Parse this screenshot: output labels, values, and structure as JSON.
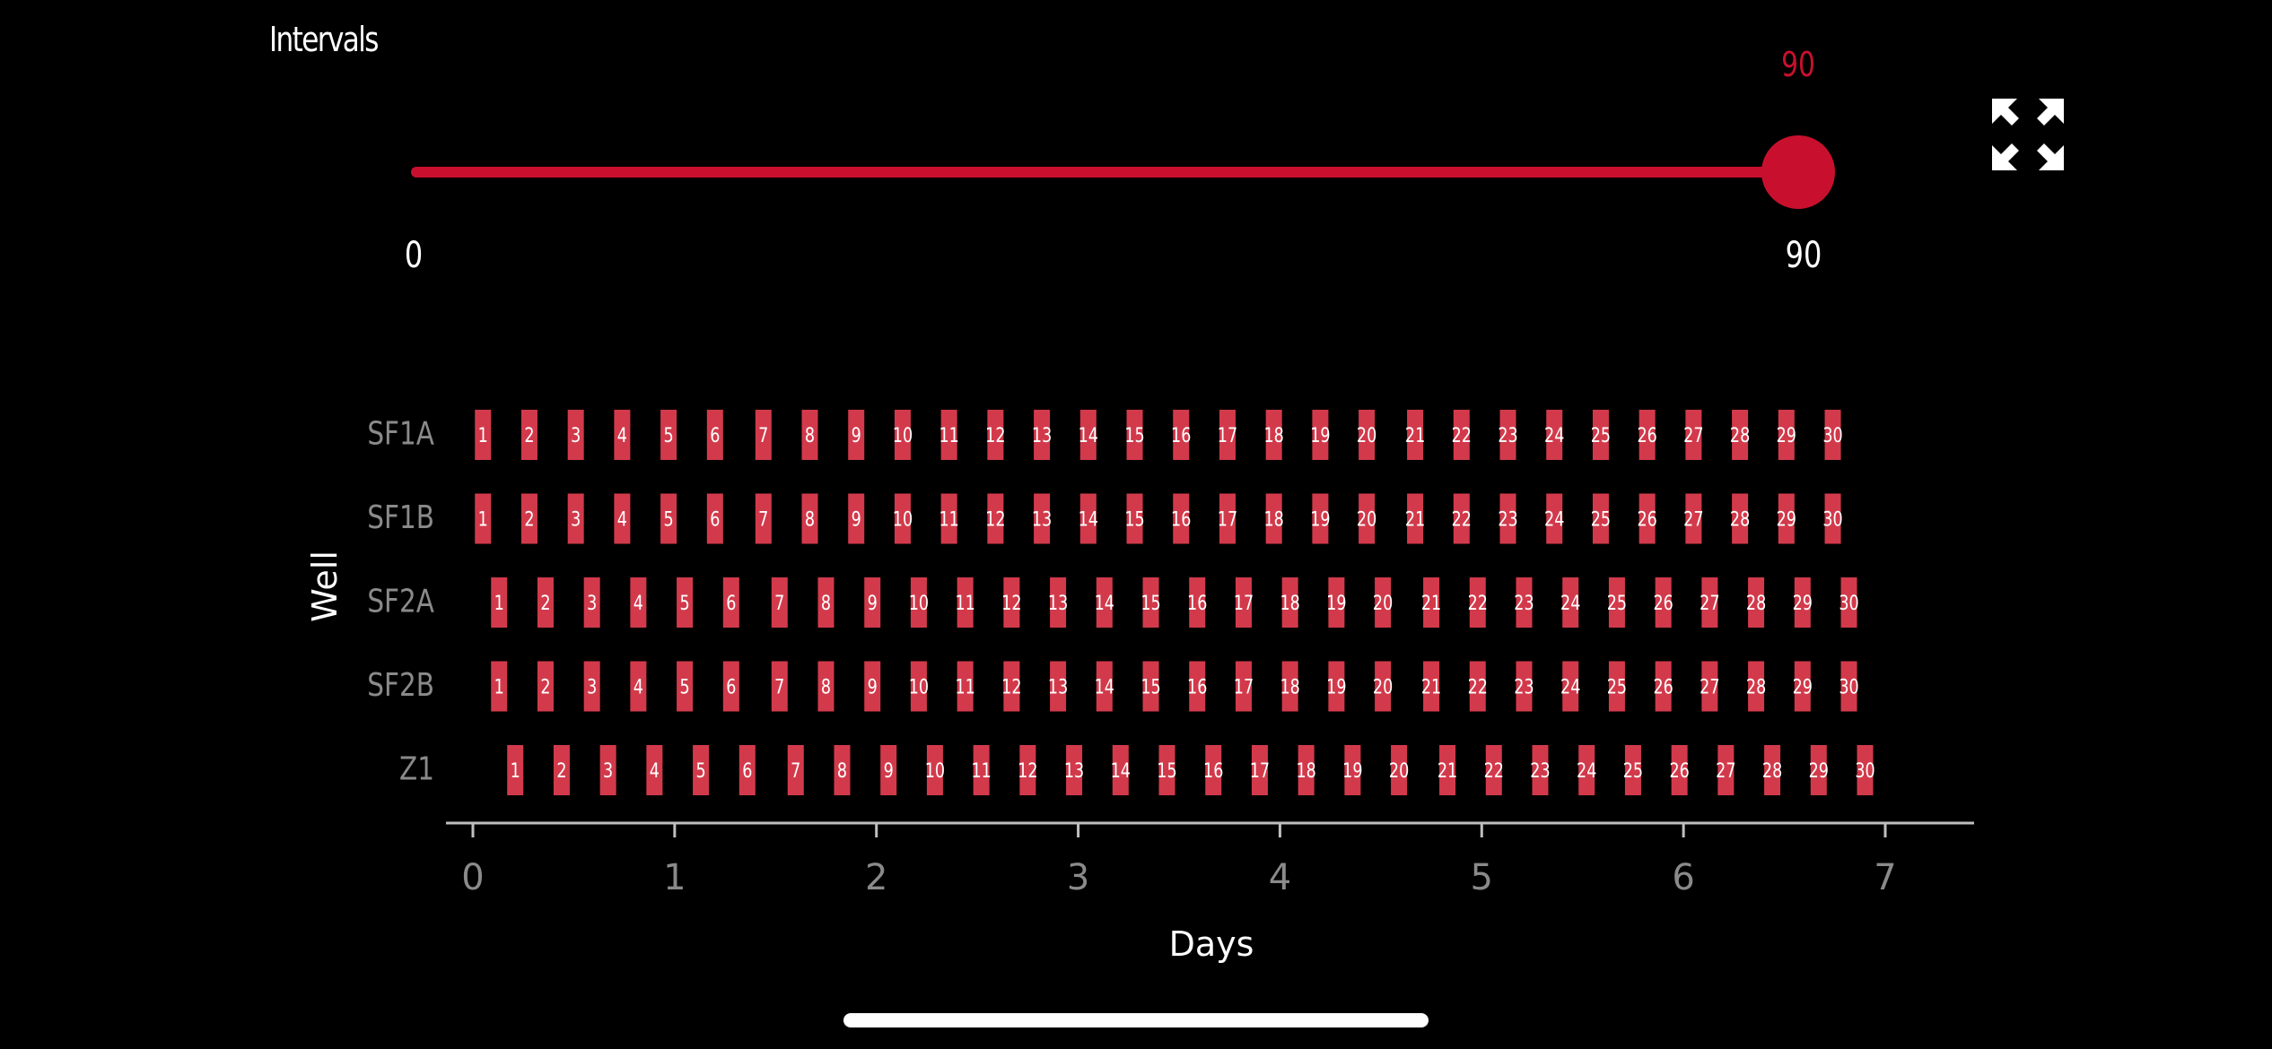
{
  "header": {
    "title": "Intervals",
    "expand_icon": "expand-arrows-icon"
  },
  "slider": {
    "value": "90",
    "min_label": "0",
    "max_label": "90",
    "min": 0,
    "max": 90,
    "current": 90,
    "color": "#c8102e"
  },
  "chart_data": {
    "type": "scatter",
    "xlabel": "Days",
    "ylabel": "Well",
    "xlim": [
      0,
      7
    ],
    "x_ticks": [
      "0",
      "1",
      "2",
      "3",
      "4",
      "5",
      "6",
      "7"
    ],
    "categories": [
      "SF1A",
      "SF1B",
      "SF2A",
      "SF2B",
      "Z1"
    ],
    "marker_color": "#d23a4b",
    "series": [
      {
        "name": "SF1A",
        "x": [
          0.05,
          0.28,
          0.51,
          0.74,
          0.97,
          1.2,
          1.44,
          1.67,
          1.9,
          2.13,
          2.36,
          2.59,
          2.82,
          3.05,
          3.28,
          3.51,
          3.74,
          3.97,
          4.2,
          4.43,
          4.67,
          4.9,
          5.13,
          5.36,
          5.59,
          5.82,
          6.05,
          6.28,
          6.51,
          6.74
        ],
        "labels": [
          "1",
          "2",
          "3",
          "4",
          "5",
          "6",
          "7",
          "8",
          "9",
          "10",
          "11",
          "12",
          "13",
          "14",
          "15",
          "16",
          "17",
          "18",
          "19",
          "20",
          "21",
          "22",
          "23",
          "24",
          "25",
          "26",
          "27",
          "28",
          "29",
          "30"
        ]
      },
      {
        "name": "SF1B",
        "x": [
          0.05,
          0.28,
          0.51,
          0.74,
          0.97,
          1.2,
          1.44,
          1.67,
          1.9,
          2.13,
          2.36,
          2.59,
          2.82,
          3.05,
          3.28,
          3.51,
          3.74,
          3.97,
          4.2,
          4.43,
          4.67,
          4.9,
          5.13,
          5.36,
          5.59,
          5.82,
          6.05,
          6.28,
          6.51,
          6.74
        ],
        "labels": [
          "1",
          "2",
          "3",
          "4",
          "5",
          "6",
          "7",
          "8",
          "9",
          "10",
          "11",
          "12",
          "13",
          "14",
          "15",
          "16",
          "17",
          "18",
          "19",
          "20",
          "21",
          "22",
          "23",
          "24",
          "25",
          "26",
          "27",
          "28",
          "29",
          "30"
        ]
      },
      {
        "name": "SF2A",
        "x": [
          0.13,
          0.36,
          0.59,
          0.82,
          1.05,
          1.28,
          1.52,
          1.75,
          1.98,
          2.21,
          2.44,
          2.67,
          2.9,
          3.13,
          3.36,
          3.59,
          3.82,
          4.05,
          4.28,
          4.51,
          4.75,
          4.98,
          5.21,
          5.44,
          5.67,
          5.9,
          6.13,
          6.36,
          6.59,
          6.82
        ],
        "labels": [
          "1",
          "2",
          "3",
          "4",
          "5",
          "6",
          "7",
          "8",
          "9",
          "10",
          "11",
          "12",
          "13",
          "14",
          "15",
          "16",
          "17",
          "18",
          "19",
          "20",
          "21",
          "22",
          "23",
          "24",
          "25",
          "26",
          "27",
          "28",
          "29",
          "30"
        ]
      },
      {
        "name": "SF2B",
        "x": [
          0.13,
          0.36,
          0.59,
          0.82,
          1.05,
          1.28,
          1.52,
          1.75,
          1.98,
          2.21,
          2.44,
          2.67,
          2.9,
          3.13,
          3.36,
          3.59,
          3.82,
          4.05,
          4.28,
          4.51,
          4.75,
          4.98,
          5.21,
          5.44,
          5.67,
          5.9,
          6.13,
          6.36,
          6.59,
          6.82
        ],
        "labels": [
          "1",
          "2",
          "3",
          "4",
          "5",
          "6",
          "7",
          "8",
          "9",
          "10",
          "11",
          "12",
          "13",
          "14",
          "15",
          "16",
          "17",
          "18",
          "19",
          "20",
          "21",
          "22",
          "23",
          "24",
          "25",
          "26",
          "27",
          "28",
          "29",
          "30"
        ]
      },
      {
        "name": "Z1",
        "x": [
          0.21,
          0.44,
          0.67,
          0.9,
          1.13,
          1.36,
          1.6,
          1.83,
          2.06,
          2.29,
          2.52,
          2.75,
          2.98,
          3.21,
          3.44,
          3.67,
          3.9,
          4.13,
          4.36,
          4.59,
          4.83,
          5.06,
          5.29,
          5.52,
          5.75,
          5.98,
          6.21,
          6.44,
          6.67,
          6.9
        ],
        "labels": [
          "1",
          "2",
          "3",
          "4",
          "5",
          "6",
          "7",
          "8",
          "9",
          "10",
          "11",
          "12",
          "13",
          "14",
          "15",
          "16",
          "17",
          "18",
          "19",
          "20",
          "21",
          "22",
          "23",
          "24",
          "25",
          "26",
          "27",
          "28",
          "29",
          "30"
        ]
      }
    ]
  }
}
